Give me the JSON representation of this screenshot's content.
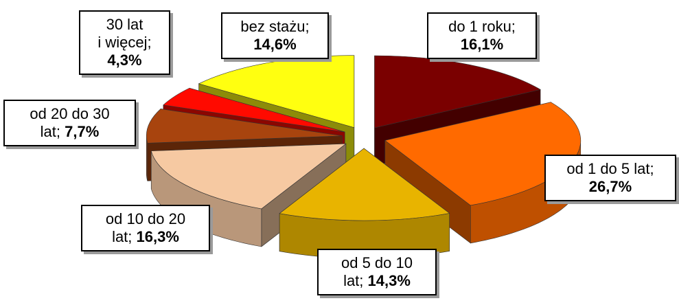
{
  "chart_data": {
    "type": "pie3d",
    "categories": [
      "do 1 roku;",
      "od 1 do 5 lat;",
      "od 5 do 10\nlat;",
      "od 10 do 20\nlat;",
      "od 20 do 30\nlat;",
      "30 lat\ni więcej;",
      "bez stażu;"
    ],
    "values": [
      16.1,
      26.7,
      14.3,
      16.3,
      7.7,
      4.3,
      14.6
    ],
    "value_labels": [
      "16,1%",
      "26,7%",
      "14,3%",
      "16,3%",
      "7,7%",
      "4,3%",
      "14,6%"
    ],
    "colors": [
      "#7a0000",
      "#ff6a00",
      "#e8b400",
      "#f6c9a2",
      "#a8440e",
      "#ff0a00",
      "#ffff10"
    ]
  }
}
